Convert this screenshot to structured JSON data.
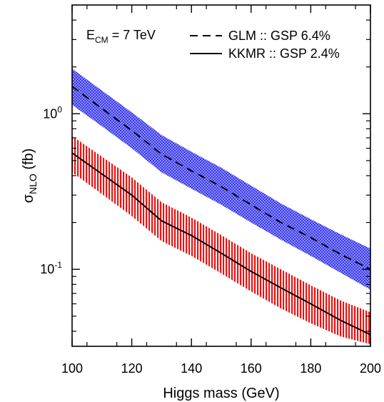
{
  "chart_data": {
    "type": "area",
    "xlabel": "Higgs mass (GeV)",
    "ylabel": {
      "main": "σ",
      "sub": "NLO",
      "unit": " (fb)"
    },
    "xlim": [
      100,
      200
    ],
    "ylim": [
      0.032,
      5
    ],
    "yscale": "log",
    "xticks": [
      100,
      120,
      140,
      160,
      180,
      200
    ],
    "yticks": [
      {
        "value": 1,
        "base": "10",
        "exp": "0"
      },
      {
        "value": 0.1,
        "base": "10",
        "exp": "-1"
      }
    ],
    "annotation": {
      "main": "E",
      "sub": "CM",
      "rest": " = 7 TeV"
    },
    "legend_position": "top-right",
    "series": [
      {
        "name": "GLM :: GSP 6.4%",
        "line_style": "dashed",
        "band_color": "#3535ee",
        "band_pattern": "dots",
        "x": [
          100,
          110,
          120,
          130,
          140,
          150,
          160,
          170,
          180,
          190,
          200
        ],
        "values": [
          1.5,
          1.08,
          0.78,
          0.55,
          0.43,
          0.34,
          0.26,
          0.2,
          0.16,
          0.125,
          0.1
        ],
        "band_upper": [
          1.95,
          1.41,
          1.02,
          0.73,
          0.57,
          0.45,
          0.345,
          0.265,
          0.21,
          0.168,
          0.136
        ],
        "band_lower": [
          1.14,
          0.83,
          0.6,
          0.42,
          0.33,
          0.26,
          0.2,
          0.155,
          0.122,
          0.095,
          0.074
        ]
      },
      {
        "name": "KKMR :: GSP 2.4%",
        "line_style": "solid",
        "band_color": "#ee1111",
        "band_pattern": "vertical-hatch",
        "x": [
          100,
          110,
          120,
          130,
          140,
          150,
          160,
          170,
          180,
          190,
          200
        ],
        "values": [
          0.56,
          0.41,
          0.3,
          0.205,
          0.165,
          0.127,
          0.097,
          0.076,
          0.06,
          0.047,
          0.038
        ],
        "band_upper": [
          0.72,
          0.53,
          0.39,
          0.27,
          0.215,
          0.166,
          0.127,
          0.1,
          0.079,
          0.063,
          0.053
        ],
        "band_lower": [
          0.42,
          0.305,
          0.22,
          0.152,
          0.122,
          0.094,
          0.072,
          0.056,
          0.045,
          0.037,
          0.033
        ]
      }
    ]
  }
}
